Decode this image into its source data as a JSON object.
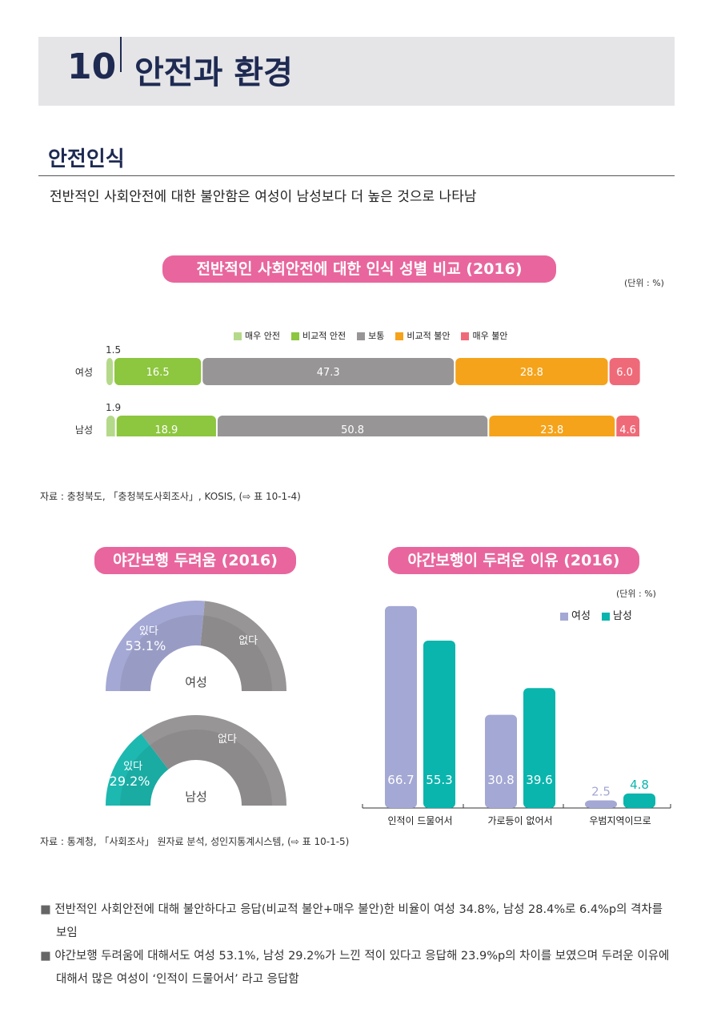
{
  "header": {
    "chapter_number": "10",
    "chapter_title": "안전과 환경"
  },
  "section": {
    "title": "안전인식",
    "lead": "전반적인 사회안전에 대한 불안함은 여성이 남성보다 더 높은 것으로 나타남"
  },
  "chart1": {
    "title": "전반적인 사회안전에 대한 인식 성별 비교 (2016)",
    "unit": "(단위 : %)",
    "source": "자료 : 충청북도, 「충청북도사회조사」, KOSIS, (⇨ 표 10-1-4)"
  },
  "chart2": {
    "title": "야간보행 두려움 (2016)",
    "source": "자료 : 통계청, 「사회조사」 원자료 분석, 성인지통계시스템, (⇨ 표 10-1-5)"
  },
  "chart3": {
    "title": "야간보행이 두려운 이유 (2016)",
    "unit": "(단위 : %)"
  },
  "chart_data": [
    {
      "type": "bar",
      "orientation": "horizontal",
      "stacked": true,
      "categories": [
        "여성",
        "남성"
      ],
      "series": [
        {
          "name": "매우 안전",
          "values": [
            1.5,
            1.9
          ],
          "color": "#b5d98a"
        },
        {
          "name": "비교적 안전",
          "values": [
            16.5,
            18.9
          ],
          "color": "#8dc63f"
        },
        {
          "name": "보통",
          "values": [
            47.3,
            50.8
          ],
          "color": "#979596"
        },
        {
          "name": "비교적 불안",
          "values": [
            28.8,
            23.8
          ],
          "color": "#f5a31a"
        },
        {
          "name": "매우 불안",
          "values": [
            6.0,
            4.6
          ],
          "color": "#ef6a78"
        }
      ],
      "legend": "top"
    },
    {
      "type": "pie",
      "variant": "half-donut",
      "charts": [
        {
          "label": "여성",
          "slices": [
            {
              "name": "있다",
              "value": 53.1,
              "display": "53.1%",
              "color": "#a4a8d4"
            },
            {
              "name": "없다",
              "value": 46.9,
              "color": "#979596"
            }
          ]
        },
        {
          "label": "남성",
          "slices": [
            {
              "name": "있다",
              "value": 29.2,
              "display": "29.2%",
              "color": "#1db8b0"
            },
            {
              "name": "없다",
              "value": 70.8,
              "color": "#979596"
            }
          ]
        }
      ]
    },
    {
      "type": "bar",
      "categories": [
        "인적이 드물어서",
        "가로등이 없어서",
        "우범지역이므로"
      ],
      "series": [
        {
          "name": "여성",
          "values": [
            66.7,
            30.8,
            2.5
          ],
          "color": "#a4a8d4"
        },
        {
          "name": "남성",
          "values": [
            55.3,
            39.6,
            4.8
          ],
          "color": "#09b5ad"
        }
      ],
      "legend": "top-right"
    }
  ],
  "notes": [
    "전반적인 사회안전에 대해 불안하다고 응답(비교적 불안+매우 불안)한 비율이 여성 34.8%, 남성 28.4%로 6.4%p의 격차를 보임",
    "야간보행 두려움에 대해서도 여성 53.1%, 남성 29.2%가 느낀 적이 있다고 응답해 23.9%p의 차이를 보였으며 두려운 이유에 대해서 많은 여성이 ‘인적이 드물어서’ 라고 응답함"
  ]
}
